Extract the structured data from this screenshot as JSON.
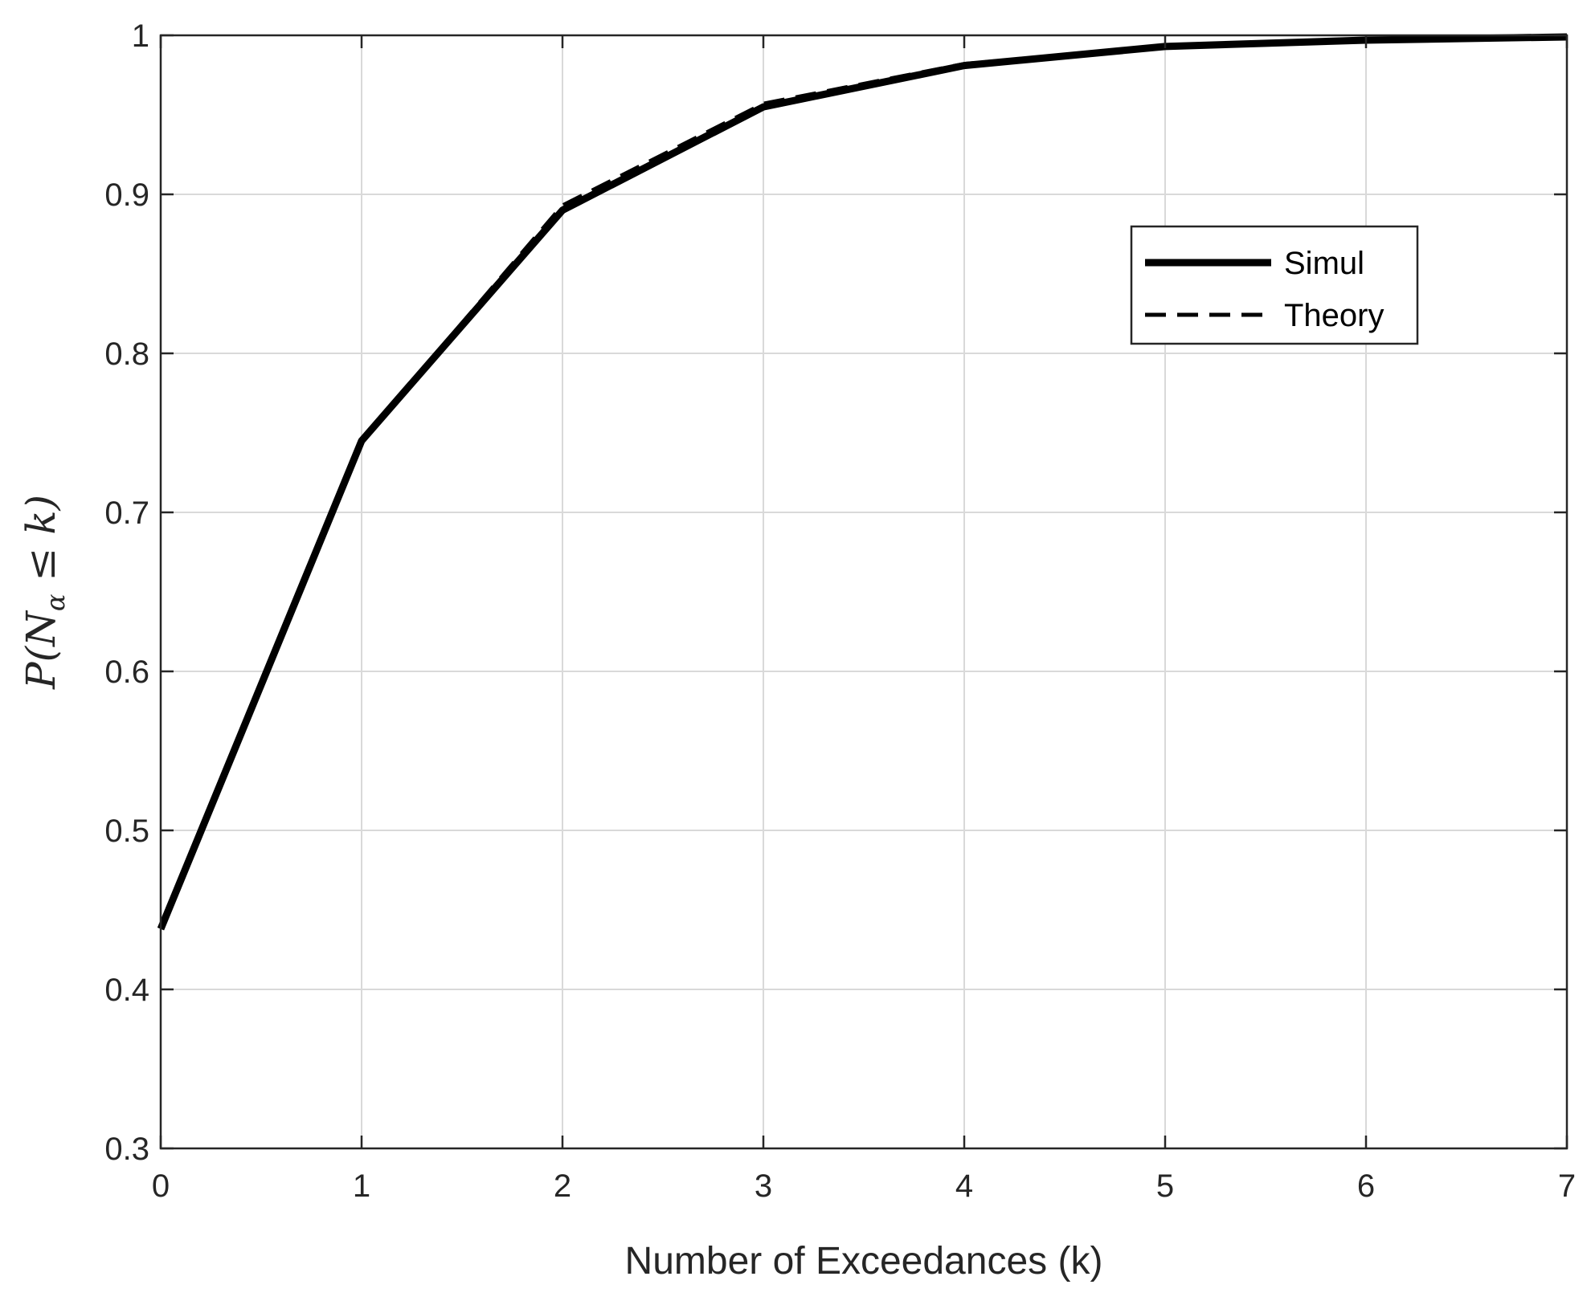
{
  "chart_data": {
    "type": "line",
    "title": "",
    "xlabel": "Number of Exceedances (k)",
    "ylabel": "P(N_α ≤ k)",
    "xlim": [
      0,
      7
    ],
    "ylim": [
      0.3,
      1
    ],
    "xticks": [
      "0",
      "1",
      "2",
      "3",
      "4",
      "5",
      "6",
      "7"
    ],
    "yticks": [
      "0.3",
      "0.4",
      "0.5",
      "0.6",
      "0.7",
      "0.8",
      "0.9",
      "1"
    ],
    "grid": true,
    "legend_position": "upper-right",
    "x": [
      0,
      1,
      2,
      3,
      4,
      5,
      6,
      7
    ],
    "series": [
      {
        "name": "Simul",
        "style": "solid",
        "values": [
          0.438,
          0.745,
          0.89,
          0.955,
          0.981,
          0.993,
          0.997,
          0.999
        ]
      },
      {
        "name": "Theory",
        "style": "dashed",
        "values": [
          0.44,
          0.745,
          0.893,
          0.957,
          0.982,
          0.993,
          0.997,
          0.999
        ]
      }
    ]
  },
  "colors": {
    "line": "#000000",
    "grid": "#d9d9d9",
    "axis": "#262626"
  }
}
